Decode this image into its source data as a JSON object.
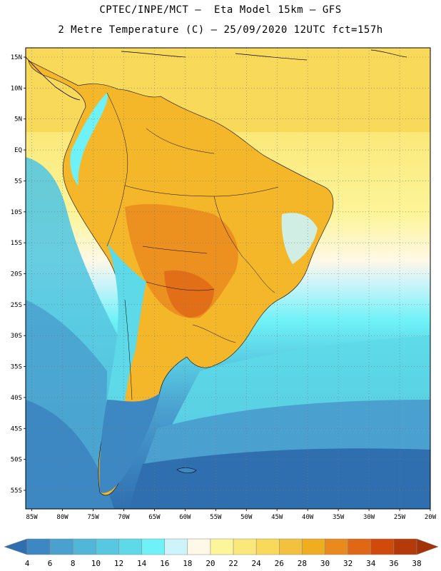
{
  "header": {
    "line1": "CPTEC/INPE/MCT –  Eta Model 15km – GFS",
    "line2": "2 Metre Temperature (C) – 25/09/2020 12UTC fct=157h"
  },
  "map": {
    "lat_labels": [
      "15N",
      "10N",
      "5N",
      "EQ",
      "5S",
      "10S",
      "15S",
      "20S",
      "25S",
      "30S",
      "35S",
      "40S",
      "45S",
      "50S",
      "55S"
    ],
    "lat_values": [
      15,
      10,
      5,
      0,
      -5,
      -10,
      -15,
      -20,
      -25,
      -30,
      -35,
      -40,
      -45,
      -50,
      -55
    ],
    "lon_labels": [
      "85W",
      "80W",
      "75W",
      "70W",
      "65W",
      "60W",
      "55W",
      "50W",
      "45W",
      "40W",
      "35W",
      "30W",
      "25W",
      "20W"
    ],
    "lon_values": [
      -85,
      -80,
      -75,
      -70,
      -65,
      -60,
      -55,
      -50,
      -45,
      -40,
      -35,
      -30,
      -25,
      -20
    ],
    "lat_range": [
      -58,
      16.5
    ],
    "lon_range": [
      -86,
      -20
    ]
  },
  "colorbar": {
    "levels": [
      "4",
      "6",
      "8",
      "10",
      "12",
      "14",
      "16",
      "18",
      "20",
      "22",
      "24",
      "26",
      "28",
      "30",
      "32",
      "34",
      "36",
      "38"
    ],
    "colors": [
      "#2f6fb0",
      "#3d88c2",
      "#4aa0cf",
      "#52b6d8",
      "#57c8e0",
      "#5dd9e8",
      "#6ff2f7",
      "#cdf4fa",
      "#fff8e6",
      "#fdf59a",
      "#fbe87a",
      "#f8d95a",
      "#f2c23f",
      "#efad20",
      "#ea8a1e",
      "#e06715",
      "#d04a0c",
      "#b43a0a",
      "#a33208"
    ]
  }
}
